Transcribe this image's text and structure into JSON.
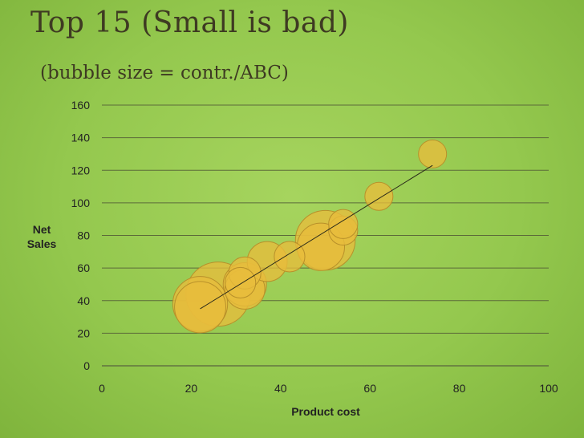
{
  "header": {
    "title": "Top 15 (Small is bad)",
    "subtitle": "(bubble size = contr./ABC)"
  },
  "chart_data": {
    "type": "scatter",
    "subtype": "bubble",
    "xlabel": "Product cost",
    "ylabel_lines": [
      "Net",
      "Sales"
    ],
    "xlim": [
      0,
      100
    ],
    "ylim": [
      0,
      160
    ],
    "x_ticks": [
      0,
      20,
      40,
      60,
      80,
      100
    ],
    "y_ticks": [
      0,
      20,
      40,
      60,
      80,
      100,
      120,
      140,
      160
    ],
    "grid": true,
    "legend": "none",
    "bubble_color": "#e8bd3c",
    "bubble_edge_color": "#b8902a",
    "points": [
      {
        "x": 26,
        "y": 44,
        "size": 2.2
      },
      {
        "x": 22,
        "y": 38,
        "size": 1.6
      },
      {
        "x": 22,
        "y": 36,
        "size": 1.4
      },
      {
        "x": 50,
        "y": 77,
        "size": 1.9
      },
      {
        "x": 49,
        "y": 73,
        "size": 1.2
      },
      {
        "x": 32,
        "y": 50,
        "size": 1.0
      },
      {
        "x": 32,
        "y": 47,
        "size": 0.85
      },
      {
        "x": 37,
        "y": 64,
        "size": 0.85
      },
      {
        "x": 32,
        "y": 57,
        "size": 0.55
      },
      {
        "x": 42,
        "y": 67,
        "size": 0.5
      },
      {
        "x": 54,
        "y": 83,
        "size": 0.45
      },
      {
        "x": 54,
        "y": 87,
        "size": 0.45
      },
      {
        "x": 62,
        "y": 104,
        "size": 0.42
      },
      {
        "x": 74,
        "y": 130,
        "size": 0.42
      },
      {
        "x": 31,
        "y": 51,
        "size": 0.5
      }
    ],
    "trendline": {
      "x": [
        22,
        74
      ],
      "y": [
        35,
        123
      ]
    }
  }
}
